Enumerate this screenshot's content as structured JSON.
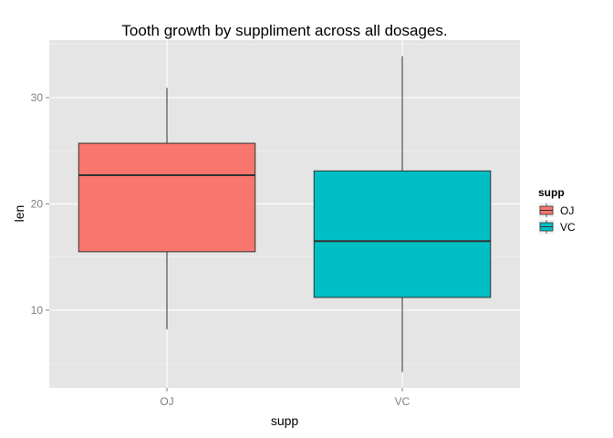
{
  "chart_data": {
    "type": "box",
    "title": "Tooth growth by suppliment across all dosages.",
    "xlabel": "supp",
    "ylabel": "len",
    "categories": [
      "OJ",
      "VC"
    ],
    "boxes": [
      {
        "category": "OJ",
        "min": 8.2,
        "q1": 15.5,
        "median": 22.7,
        "q3": 25.7,
        "max": 30.9,
        "color": "#F8766D"
      },
      {
        "category": "VC",
        "min": 4.2,
        "q1": 11.2,
        "median": 16.5,
        "q3": 23.1,
        "max": 33.9,
        "color": "#00BFC4"
      }
    ],
    "ylim": [
      2.7,
      35.4
    ],
    "yticks": [
      10,
      20,
      30
    ],
    "grid": true,
    "background": "#E5E5E5",
    "legend": {
      "title": "supp",
      "position": "right",
      "items": [
        {
          "label": "OJ",
          "color": "#F8766D"
        },
        {
          "label": "VC",
          "color": "#00BFC4"
        }
      ]
    }
  }
}
